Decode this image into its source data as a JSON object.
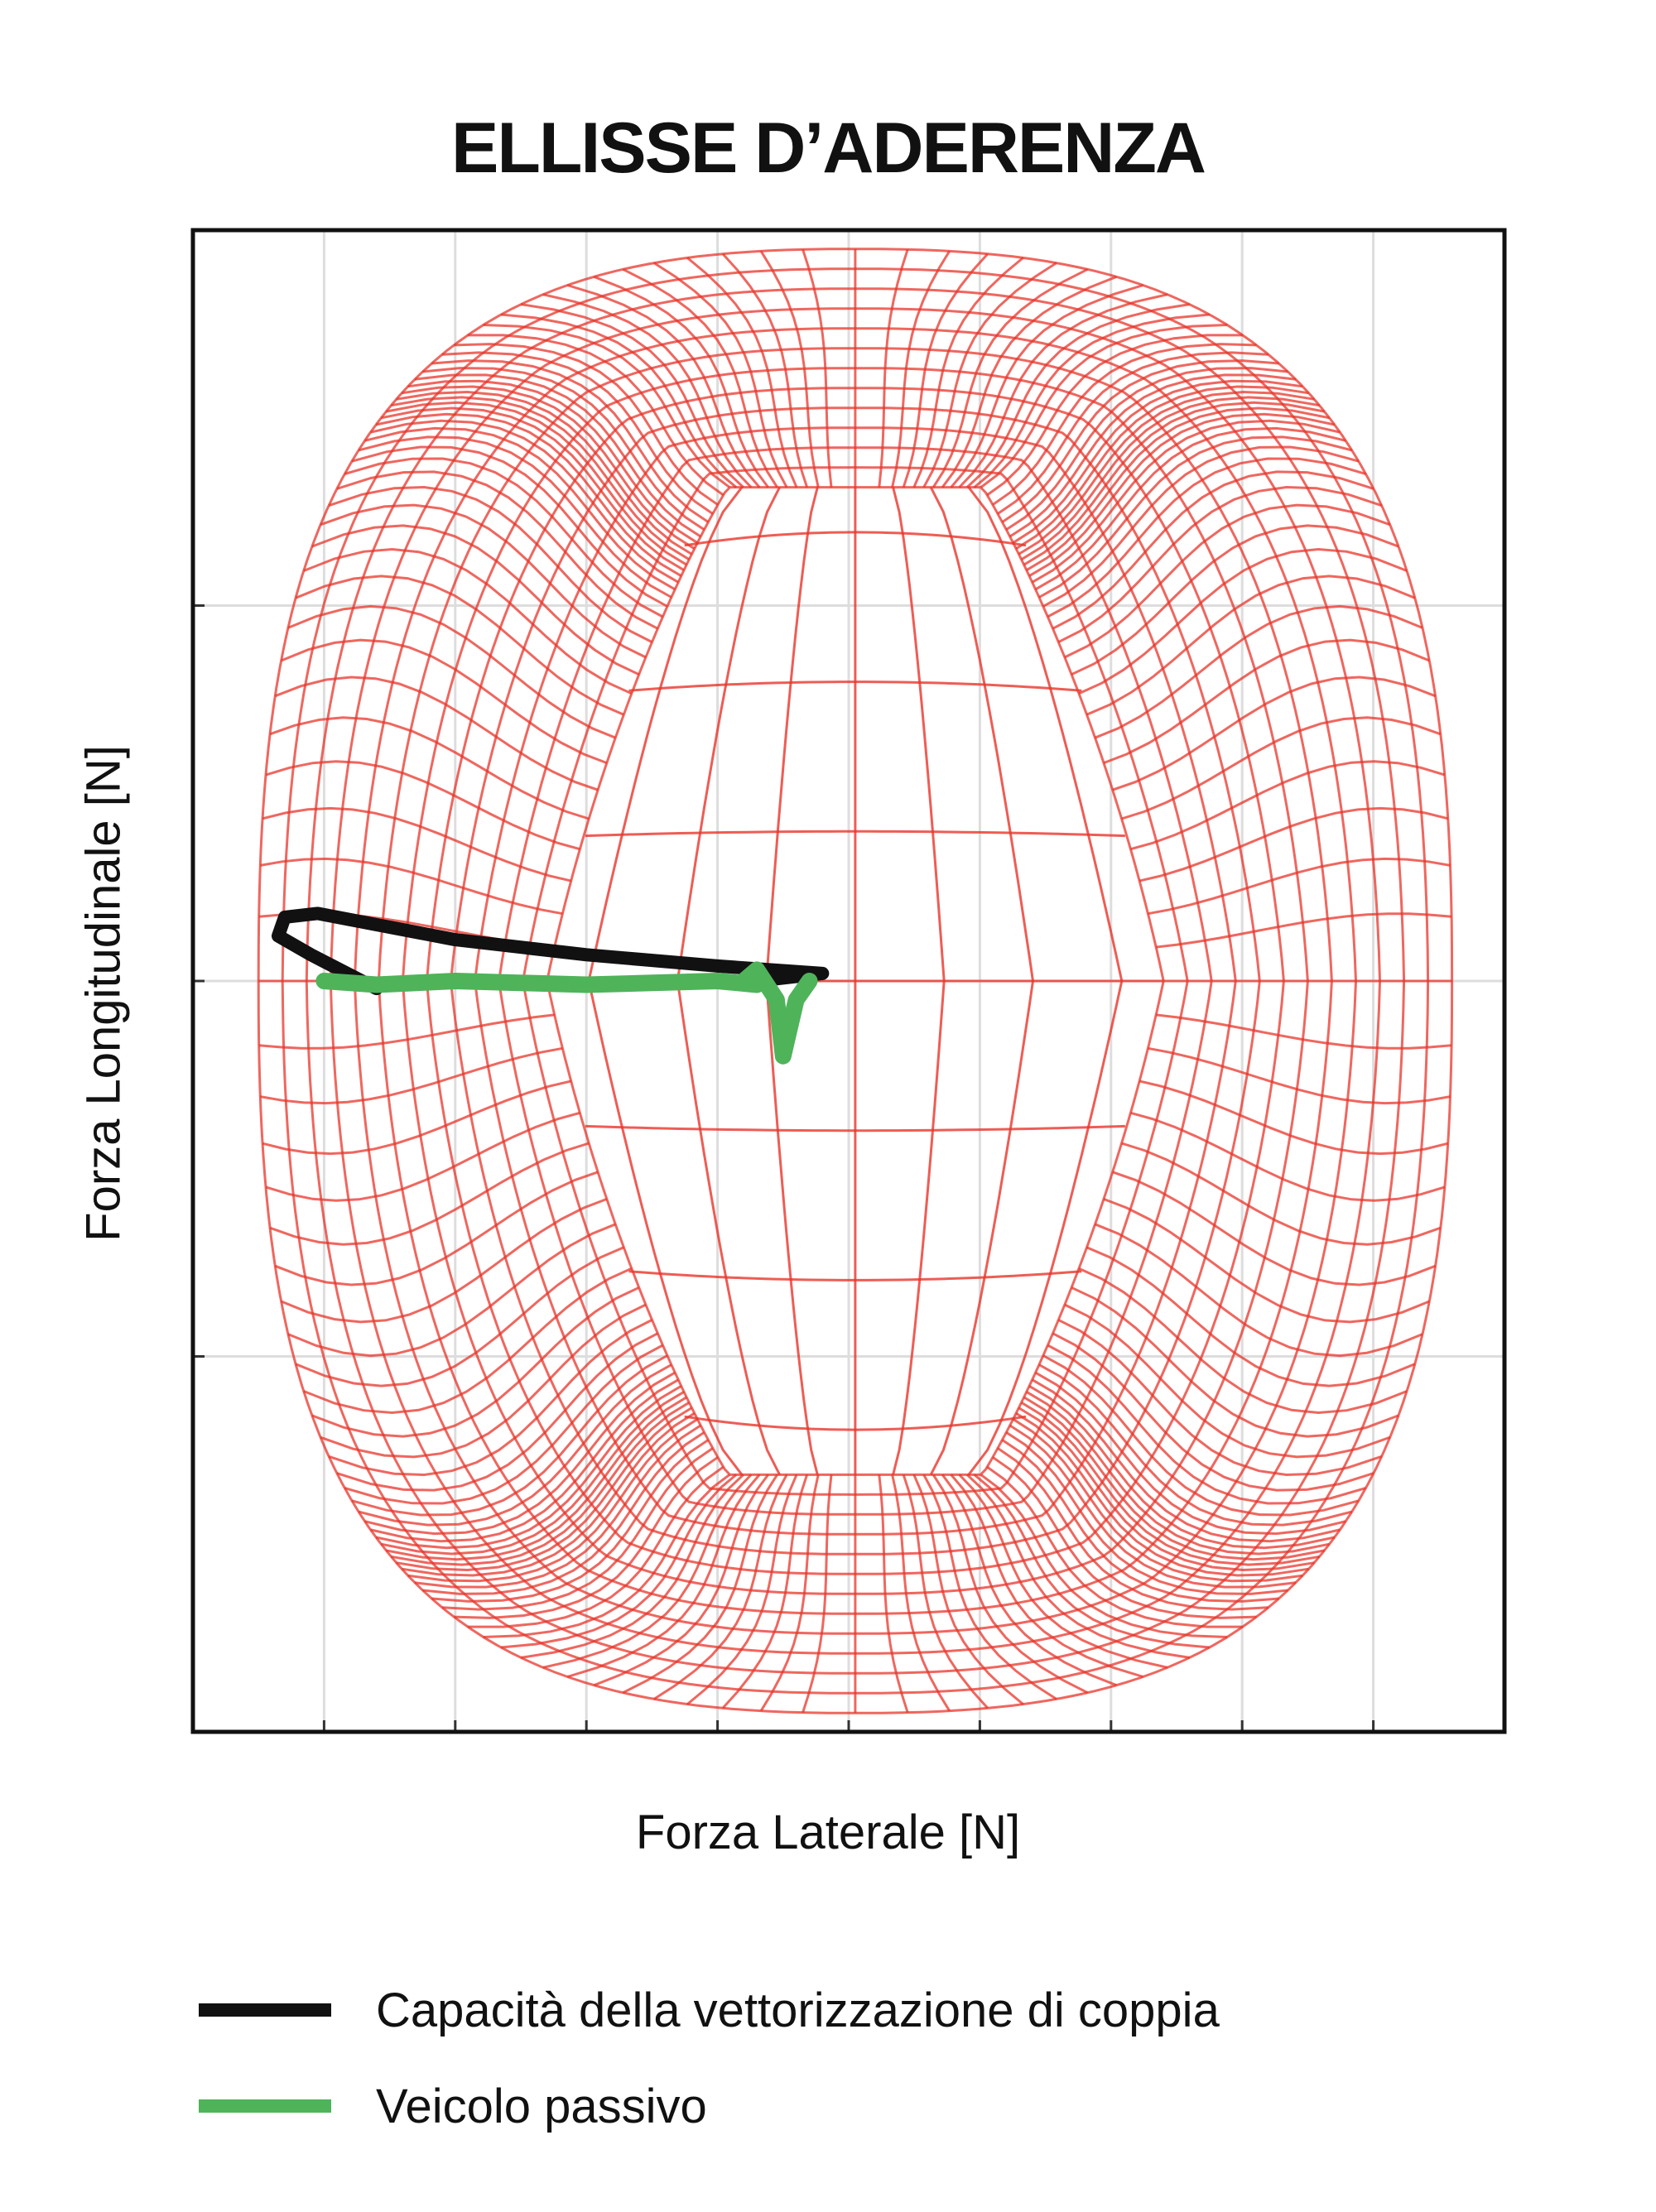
{
  "colors": {
    "envelope": "#e8342a",
    "torque_vectoring": "#111111",
    "passive": "#4fb35a",
    "grid": "#dddddd",
    "frame": "#111111"
  },
  "chart_data": {
    "type": "line",
    "title": "ELLISSE D’ADERENZA",
    "xlabel": "Forza Laterale [N]",
    "ylabel": "Forza Longitudinale [N]",
    "xlim": [
      -5,
      5
    ],
    "ylim": [
      -2,
      2
    ],
    "xticks": [
      -4,
      -3,
      -2,
      -1,
      0,
      1,
      2,
      3,
      4
    ],
    "yticks": [
      -1,
      0,
      1
    ],
    "grid": true,
    "tick_labels_shown": false,
    "legend_placement": "bottom",
    "envelope": {
      "description_series": "friction ellipse wireframe",
      "x_extent": [
        -4.5,
        4.6
      ],
      "y_extent": [
        -1.95,
        1.95
      ],
      "inner_top_y": 1.33,
      "inner_bottom_y": -1.3,
      "inner_top_halfwidth": 1.0,
      "inner_mid_halfwidth": 2.35,
      "shell_halfwidth": 4.5
    },
    "series": [
      {
        "name": "Capacità della vettorizzazione di coppia",
        "color": "#111111",
        "points": [
          [
            -3.6,
            -0.02
          ],
          [
            -4.1,
            0.07
          ],
          [
            -4.35,
            0.12
          ],
          [
            -4.3,
            0.17
          ],
          [
            -4.05,
            0.18
          ],
          [
            -3.6,
            0.15
          ],
          [
            -3.0,
            0.11
          ],
          [
            -2.0,
            0.07
          ],
          [
            -1.0,
            0.04
          ],
          [
            -0.2,
            0.02
          ],
          [
            -0.7,
            0.0
          ]
        ]
      },
      {
        "name": "Veicolo passivo",
        "color": "#4fb35a",
        "points": [
          [
            -4.0,
            0.0
          ],
          [
            -3.6,
            -0.01
          ],
          [
            -3.0,
            0.0
          ],
          [
            -2.0,
            -0.01
          ],
          [
            -1.0,
            0.0
          ],
          [
            -0.7,
            -0.01
          ],
          [
            -0.8,
            0.0
          ],
          [
            -0.7,
            0.03
          ],
          [
            -0.55,
            -0.05
          ],
          [
            -0.5,
            -0.2
          ],
          [
            -0.4,
            -0.05
          ],
          [
            -0.3,
            0.0
          ]
        ]
      }
    ]
  }
}
